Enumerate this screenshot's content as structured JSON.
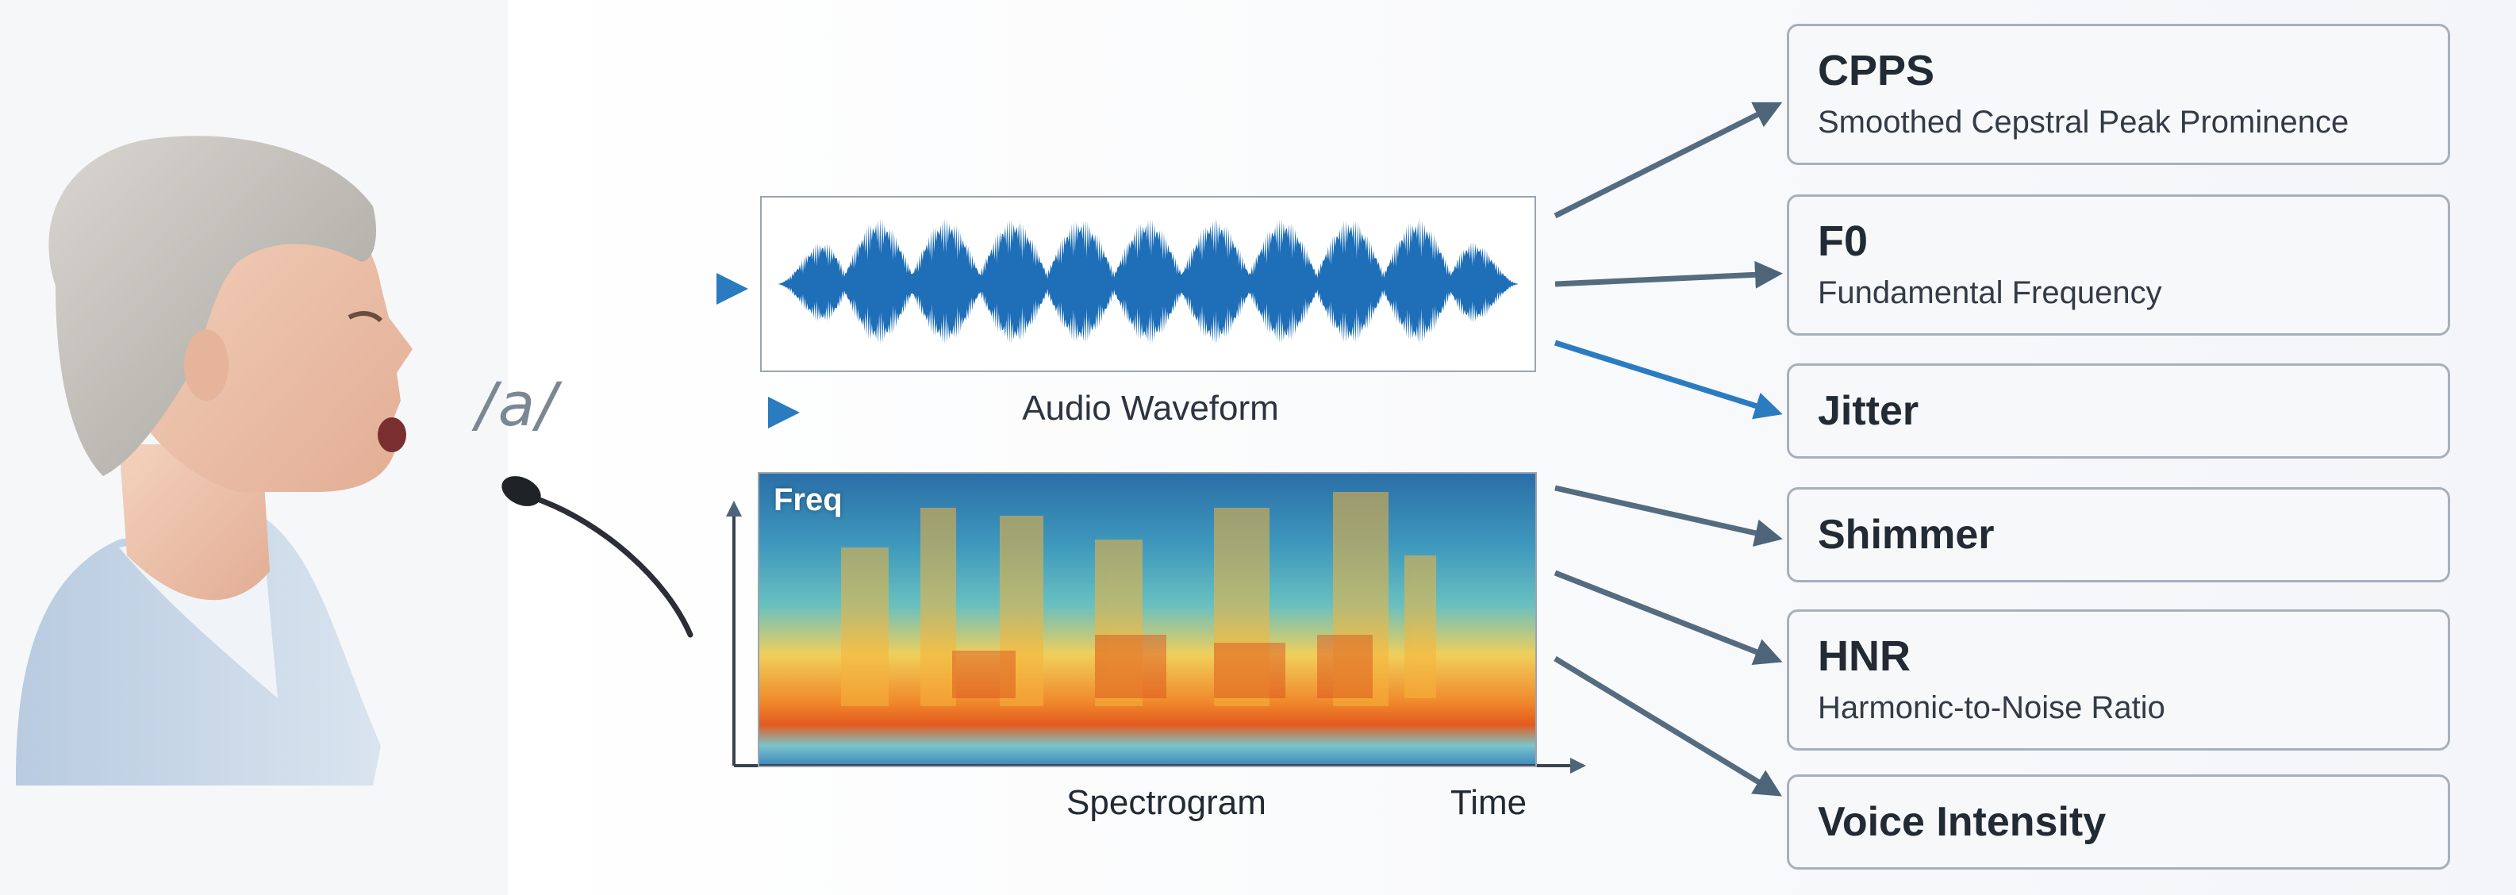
{
  "vowel": "/a/",
  "waveform": {
    "caption": "Audio Waveform"
  },
  "spectrogram": {
    "freq_label": "Freq",
    "caption": "Spectrogram",
    "time_label": "Time"
  },
  "colors": {
    "wave": "#1f6fb8",
    "arrow": "#556b80",
    "arrow_blue": "#2b7bc0",
    "box_border": "#a7b0ba"
  },
  "metrics": [
    {
      "abbr": "CPPS",
      "full": "Smoothed Cepstral Peak Prominence"
    },
    {
      "abbr": "F0",
      "full": "Fundamental Frequency"
    },
    {
      "name": "Jitter"
    },
    {
      "name": "Shimmer"
    },
    {
      "abbr": "HNR",
      "full": "Harmonic-to-Noise Ratio"
    },
    {
      "name": "Voice Intensity"
    }
  ]
}
